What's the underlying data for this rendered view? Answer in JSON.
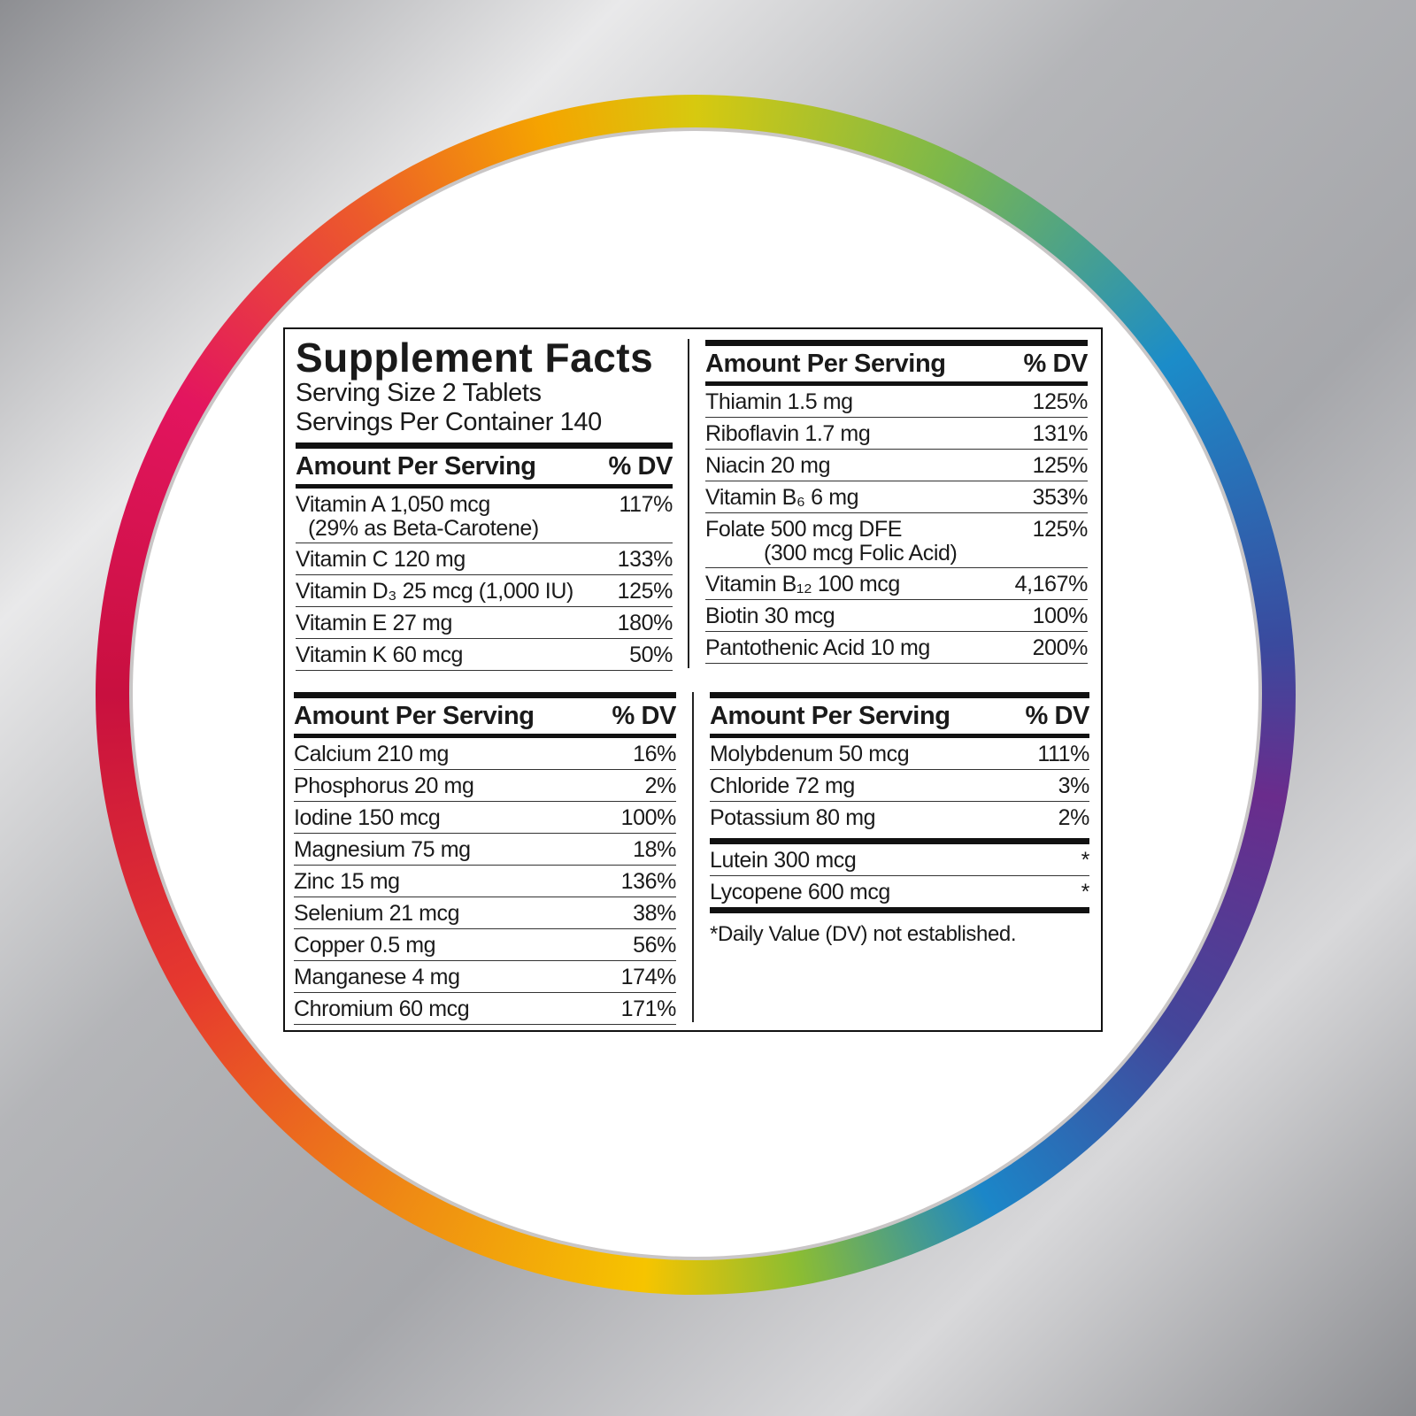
{
  "title": "Supplement Facts",
  "serving_size": "Serving Size 2 Tablets",
  "servings_per_container": "Servings Per Container 140",
  "panels": [
    {
      "amount_label": "Amount Per Serving",
      "dv_label": "% DV",
      "rows": [
        {
          "name": "Vitamin A 1,050 mcg",
          "dv": "117%",
          "note": "(29% as Beta-Carotene)"
        },
        {
          "name": "Vitamin C 120 mg",
          "dv": "133%"
        },
        {
          "name": "Vitamin D₃ 25 mcg (1,000 IU)",
          "dv": "125%"
        },
        {
          "name": "Vitamin E 27 mg",
          "dv": "180%"
        },
        {
          "name": "Vitamin K 60 mcg",
          "dv": "50%"
        }
      ]
    },
    {
      "amount_label": "Amount Per Serving",
      "dv_label": "% DV",
      "rows": [
        {
          "name": "Thiamin 1.5 mg",
          "dv": "125%"
        },
        {
          "name": "Riboflavin 1.7 mg",
          "dv": "131%"
        },
        {
          "name": "Niacin 20 mg",
          "dv": "125%"
        },
        {
          "name": "Vitamin B₆ 6 mg",
          "dv": "353%"
        },
        {
          "name": "Folate 500 mcg DFE",
          "dv": "125%",
          "note": "(300 mcg Folic Acid)"
        },
        {
          "name": "Vitamin B₁₂ 100 mcg",
          "dv": "4,167%"
        },
        {
          "name": "Biotin 30 mcg",
          "dv": "100%"
        },
        {
          "name": "Pantothenic Acid 10 mg",
          "dv": "200%"
        }
      ]
    },
    {
      "amount_label": "Amount Per Serving",
      "dv_label": "% DV",
      "rows": [
        {
          "name": "Calcium 210 mg",
          "dv": "16%"
        },
        {
          "name": "Phosphorus 20 mg",
          "dv": "2%"
        },
        {
          "name": "Iodine 150 mcg",
          "dv": "100%"
        },
        {
          "name": "Magnesium 75 mg",
          "dv": "18%"
        },
        {
          "name": "Zinc 15 mg",
          "dv": "136%"
        },
        {
          "name": "Selenium 21 mcg",
          "dv": "38%"
        },
        {
          "name": "Copper 0.5 mg",
          "dv": "56%"
        },
        {
          "name": "Manganese 4 mg",
          "dv": "174%"
        },
        {
          "name": "Chromium 60 mcg",
          "dv": "171%"
        }
      ]
    },
    {
      "amount_label": "Amount Per Serving",
      "dv_label": "% DV",
      "rows": [
        {
          "name": "Molybdenum 50 mcg",
          "dv": "111%"
        },
        {
          "name": "Chloride 72 mg",
          "dv": "3%"
        },
        {
          "name": "Potassium 80 mg",
          "dv": "2%"
        }
      ],
      "extra_rows": [
        {
          "name": "Lutein 300 mcg",
          "dv": "*"
        },
        {
          "name": "Lycopene 600 mcg",
          "dv": "*"
        }
      ],
      "footnote": "*Daily Value (DV) not established."
    }
  ]
}
